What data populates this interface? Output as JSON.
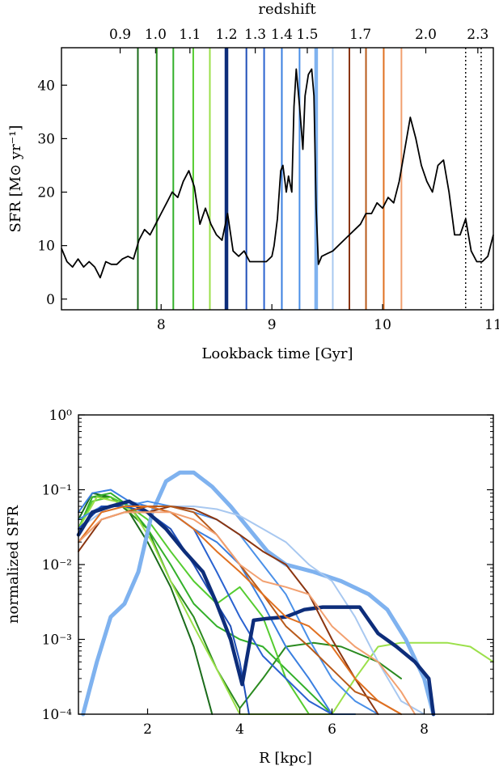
{
  "chart_data": [
    {
      "type": "line",
      "xlabel": "Lookback time [Gyr]",
      "ylabel": "SFR [M⊙ yr⁻¹]",
      "top_axis_label": "redshift",
      "xlim": [
        7.1,
        11.0
      ],
      "ylim": [
        -2,
        47
      ],
      "x_ticks": [
        8,
        9,
        10,
        11
      ],
      "y_ticks": [
        0,
        10,
        20,
        30,
        40
      ],
      "top_ticks": [
        {
          "label": "0.9",
          "t": 7.63
        },
        {
          "label": "1.0",
          "t": 7.95
        },
        {
          "label": "1.1",
          "t": 8.26
        },
        {
          "label": "1.2",
          "t": 8.59
        },
        {
          "label": "1.3",
          "t": 8.85
        },
        {
          "label": "1.4",
          "t": 9.09
        },
        {
          "label": "1.5",
          "t": 9.32
        },
        {
          "label": "1.7",
          "t": 9.8
        },
        {
          "label": "2.0",
          "t": 10.39
        },
        {
          "label": "2.3",
          "t": 10.86
        }
      ],
      "markers": [
        {
          "t": 7.79,
          "color": "#1a6b1a",
          "width": 2
        },
        {
          "t": 7.96,
          "color": "#2a8a1f",
          "width": 2
        },
        {
          "t": 8.11,
          "color": "#33b02a",
          "width": 2
        },
        {
          "t": 8.29,
          "color": "#55cc30",
          "width": 2
        },
        {
          "t": 8.44,
          "color": "#9be04a",
          "width": 2
        },
        {
          "t": 8.59,
          "color": "#0d2d7a",
          "width": 4.5
        },
        {
          "t": 8.77,
          "color": "#1f4fb8",
          "width": 2
        },
        {
          "t": 8.93,
          "color": "#2a62d0",
          "width": 2
        },
        {
          "t": 9.09,
          "color": "#3a7fe0",
          "width": 2
        },
        {
          "t": 9.25,
          "color": "#4a90e8",
          "width": 2
        },
        {
          "t": 9.4,
          "color": "#7fb2ef",
          "width": 4.5
        },
        {
          "t": 9.55,
          "color": "#a8c8f0",
          "width": 2
        },
        {
          "t": 9.7,
          "color": "#8b3510",
          "width": 2
        },
        {
          "t": 9.85,
          "color": "#b85a1a",
          "width": 2
        },
        {
          "t": 10.01,
          "color": "#e07020",
          "width": 2
        },
        {
          "t": 10.17,
          "color": "#f2a070",
          "width": 2
        },
        {
          "t": 10.75,
          "color": "#000000",
          "width": 1.4,
          "dashed": true
        },
        {
          "t": 10.89,
          "color": "#000000",
          "width": 1.4,
          "dashed": true
        }
      ],
      "series": [
        {
          "color": "#000000",
          "x": [
            7.1,
            7.15,
            7.2,
            7.25,
            7.3,
            7.35,
            7.4,
            7.45,
            7.5,
            7.55,
            7.6,
            7.65,
            7.7,
            7.75,
            7.8,
            7.85,
            7.9,
            7.95,
            8.0,
            8.05,
            8.1,
            8.15,
            8.2,
            8.25,
            8.3,
            8.35,
            8.4,
            8.45,
            8.5,
            8.55,
            8.6,
            8.65,
            8.7,
            8.75,
            8.8,
            8.85,
            8.9,
            8.95,
            9.0,
            9.02,
            9.05,
            9.08,
            9.1,
            9.13,
            9.15,
            9.18,
            9.2,
            9.22,
            9.25,
            9.28,
            9.3,
            9.33,
            9.36,
            9.38,
            9.4,
            9.42,
            9.45,
            9.5,
            9.55,
            9.6,
            9.65,
            9.7,
            9.75,
            9.8,
            9.85,
            9.9,
            9.95,
            10.0,
            10.05,
            10.1,
            10.15,
            10.2,
            10.25,
            10.3,
            10.35,
            10.4,
            10.45,
            10.5,
            10.55,
            10.6,
            10.65,
            10.7,
            10.75,
            10.8,
            10.85,
            10.9,
            10.95,
            11.0
          ],
          "y": [
            9.5,
            7,
            6,
            7.5,
            6,
            7,
            6,
            4,
            7,
            6.5,
            6.5,
            7.5,
            8,
            7.5,
            11,
            13,
            12,
            14,
            16,
            18,
            20,
            19,
            22,
            24,
            21,
            14,
            17,
            14,
            12,
            11,
            16,
            9,
            8,
            9,
            7,
            7,
            7,
            7,
            8,
            10,
            15,
            24,
            25,
            20,
            23,
            20,
            36,
            43,
            36,
            28,
            38,
            42,
            43,
            38,
            17,
            6.5,
            8,
            8.5,
            9,
            10,
            11,
            12,
            13,
            14,
            16,
            16,
            18,
            17,
            19,
            18,
            22,
            28,
            34,
            30,
            25,
            22,
            20,
            25,
            26,
            20,
            12,
            12,
            15,
            9,
            7,
            7,
            8,
            12
          ]
        }
      ]
    },
    {
      "type": "line",
      "xlabel": "R [kpc]",
      "ylabel": "normalized SFR",
      "xlim": [
        0.5,
        9.5
      ],
      "ylim": [
        0.0001,
        1
      ],
      "yscale": "log",
      "x_ticks": [
        2,
        4,
        6,
        8
      ],
      "y_ticks": [
        {
          "value": 0.0001,
          "label": "10⁻⁴"
        },
        {
          "value": 0.001,
          "label": "10⁻³"
        },
        {
          "value": 0.01,
          "label": "10⁻²"
        },
        {
          "value": 0.1,
          "label": "10⁻¹"
        },
        {
          "value": 1,
          "label": "10⁰"
        }
      ],
      "series": [
        {
          "color": "#1a6b1a",
          "width": 2,
          "x": [
            0.5,
            0.8,
            1.2,
            1.6,
            2.0,
            2.5,
            3.0,
            3.4
          ],
          "y": [
            0.04,
            0.09,
            0.08,
            0.05,
            0.02,
            0.005,
            0.0008,
            0.0001
          ]
        },
        {
          "color": "#2a8a1f",
          "width": 2,
          "x": [
            0.5,
            0.8,
            1.2,
            1.6,
            2.0,
            2.5,
            3.0,
            3.5,
            4.0,
            4.5,
            5.0,
            5.6,
            6.2,
            7.0,
            7.5
          ],
          "y": [
            0.03,
            0.08,
            0.08,
            0.05,
            0.03,
            0.006,
            0.002,
            0.0004,
            0.00012,
            0.0003,
            0.0008,
            0.0009,
            0.0008,
            0.0005,
            0.0003
          ]
        },
        {
          "color": "#33b02a",
          "width": 2,
          "x": [
            0.5,
            0.8,
            1.2,
            1.6,
            2.0,
            2.5,
            3.0,
            3.5,
            4.0,
            4.5,
            5.0,
            5.5,
            6.0,
            6.5
          ],
          "y": [
            0.03,
            0.08,
            0.09,
            0.06,
            0.03,
            0.01,
            0.003,
            0.0015,
            0.001,
            0.0008,
            0.0004,
            0.0002,
            0.0001,
            0.0001
          ]
        },
        {
          "color": "#55cc30",
          "width": 2,
          "x": [
            0.5,
            0.8,
            1.2,
            1.6,
            2.0,
            2.5,
            3.0,
            3.5,
            4.0,
            4.5,
            5.0,
            5.5
          ],
          "y": [
            0.03,
            0.07,
            0.08,
            0.06,
            0.04,
            0.015,
            0.006,
            0.003,
            0.005,
            0.002,
            0.0003,
            0.0001
          ]
        },
        {
          "color": "#9be04a",
          "width": 2,
          "x": [
            0.5,
            0.9,
            1.3,
            1.7,
            2.1,
            2.5,
            3.0,
            3.5,
            4.0,
            4.5,
            5.0,
            5.5,
            6.0,
            6.5,
            7.0,
            7.5,
            8.0,
            8.5,
            9.0,
            9.5
          ],
          "y": [
            0.03,
            0.08,
            0.07,
            0.05,
            0.02,
            0.006,
            0.0015,
            0.0004,
            0.0001,
            0.0001,
            0.0001,
            0.0001,
            0.0001,
            0.0003,
            0.0008,
            0.0009,
            0.0009,
            0.0009,
            0.0008,
            0.0005
          ]
        },
        {
          "color": "#7fb2ef",
          "width": 5,
          "x": [
            0.6,
            0.9,
            1.2,
            1.5,
            1.8,
            2.1,
            2.4,
            2.7,
            3.0,
            3.4,
            3.8,
            4.2,
            4.6,
            5.0,
            5.6,
            6.2,
            6.8,
            7.2,
            7.6,
            8.0,
            8.2
          ],
          "y": [
            0.0001,
            0.0005,
            0.002,
            0.003,
            0.008,
            0.05,
            0.13,
            0.17,
            0.17,
            0.11,
            0.06,
            0.03,
            0.015,
            0.01,
            0.008,
            0.006,
            0.004,
            0.0025,
            0.001,
            0.0003,
            0.0001
          ]
        },
        {
          "color": "#a8c8f0",
          "width": 2,
          "x": [
            0.5,
            1.0,
            1.5,
            2.0,
            2.5,
            3.0,
            3.5,
            4.0,
            4.5,
            5.0,
            5.5,
            6.0,
            6.5,
            7.0,
            7.5,
            8.0
          ],
          "y": [
            0.03,
            0.05,
            0.06,
            0.06,
            0.06,
            0.06,
            0.055,
            0.045,
            0.03,
            0.02,
            0.01,
            0.006,
            0.002,
            0.0005,
            0.00015,
            0.0001
          ]
        },
        {
          "color": "#3a7fe0",
          "width": 2,
          "x": [
            0.5,
            0.8,
            1.2,
            1.6,
            2.0,
            2.5,
            3.0,
            3.5,
            4.0,
            4.5,
            5.0,
            5.5,
            6.0,
            6.5
          ],
          "y": [
            0.05,
            0.09,
            0.1,
            0.07,
            0.06,
            0.05,
            0.03,
            0.02,
            0.01,
            0.003,
            0.0008,
            0.0003,
            0.0001,
            0.0001
          ]
        },
        {
          "color": "#4a90e8",
          "width": 2,
          "x": [
            0.5,
            1.0,
            1.5,
            2.0,
            2.5,
            3.0,
            3.5,
            4.0,
            4.5,
            5.0,
            5.5,
            6.0,
            6.5,
            7.0
          ],
          "y": [
            0.04,
            0.06,
            0.06,
            0.07,
            0.06,
            0.05,
            0.04,
            0.025,
            0.01,
            0.004,
            0.001,
            0.0003,
            0.00015,
            0.0001
          ]
        },
        {
          "color": "#2a62d0",
          "width": 2,
          "x": [
            0.5,
            1.0,
            1.5,
            2.0,
            2.5,
            3.0,
            3.5,
            4.0,
            4.5,
            5.0,
            5.5,
            6.0
          ],
          "y": [
            0.03,
            0.06,
            0.06,
            0.06,
            0.05,
            0.03,
            0.008,
            0.002,
            0.0006,
            0.0003,
            0.00015,
            0.0001
          ]
        },
        {
          "color": "#1f4fb8",
          "width": 2,
          "x": [
            0.5,
            1.0,
            1.5,
            2.0,
            2.5,
            3.0,
            3.5,
            3.8,
            4.0,
            4.2
          ],
          "y": [
            0.03,
            0.06,
            0.06,
            0.05,
            0.03,
            0.01,
            0.003,
            0.0015,
            0.0005,
            0.0001
          ]
        },
        {
          "color": "#0d2d7a",
          "width": 4.5,
          "x": [
            0.5,
            0.8,
            1.2,
            1.6,
            2.0,
            2.4,
            2.8,
            3.2,
            3.5,
            3.8,
            4.05,
            4.3,
            4.6,
            5.0,
            5.4,
            5.8,
            6.2,
            6.6,
            7.0,
            7.4,
            7.8,
            8.1,
            8.2
          ],
          "y": [
            0.025,
            0.05,
            0.06,
            0.07,
            0.05,
            0.03,
            0.015,
            0.008,
            0.003,
            0.001,
            0.00025,
            0.0018,
            0.0019,
            0.002,
            0.0025,
            0.0027,
            0.0027,
            0.0027,
            0.0012,
            0.0008,
            0.0005,
            0.0003,
            0.0001
          ]
        },
        {
          "color": "#8b3510",
          "width": 2,
          "x": [
            0.5,
            1.0,
            1.5,
            2.0,
            2.5,
            3.0,
            3.5,
            4.0,
            4.5,
            5.0,
            5.5,
            6.0,
            6.5,
            7.0
          ],
          "y": [
            0.015,
            0.04,
            0.05,
            0.05,
            0.06,
            0.055,
            0.04,
            0.025,
            0.015,
            0.01,
            0.004,
            0.001,
            0.0003,
            0.0001
          ]
        },
        {
          "color": "#b85a1a",
          "width": 2,
          "x": [
            0.5,
            1.0,
            1.5,
            2.0,
            2.5,
            3.0,
            3.5,
            4.0,
            4.5,
            5.0,
            5.5,
            6.0,
            6.5,
            7.0,
            7.5
          ],
          "y": [
            0.02,
            0.04,
            0.05,
            0.06,
            0.06,
            0.05,
            0.025,
            0.01,
            0.004,
            0.0015,
            0.0008,
            0.0004,
            0.0002,
            0.00015,
            0.0001
          ]
        },
        {
          "color": "#e07020",
          "width": 2,
          "x": [
            0.5,
            1.0,
            1.5,
            2.0,
            2.5,
            3.0,
            3.5,
            4.0,
            4.5,
            5.0,
            5.5,
            6.0,
            6.5,
            7.0,
            7.5
          ],
          "y": [
            0.02,
            0.05,
            0.06,
            0.06,
            0.05,
            0.03,
            0.015,
            0.008,
            0.004,
            0.002,
            0.0015,
            0.0008,
            0.0003,
            0.00015,
            0.0001
          ]
        },
        {
          "color": "#f2a070",
          "width": 2,
          "x": [
            0.5,
            1.0,
            1.5,
            2.0,
            2.5,
            3.0,
            3.5,
            4.0,
            4.5,
            5.0,
            5.5,
            6.0,
            6.5,
            7.0,
            7.5,
            7.8
          ],
          "y": [
            0.02,
            0.04,
            0.05,
            0.05,
            0.05,
            0.04,
            0.025,
            0.01,
            0.006,
            0.005,
            0.004,
            0.0015,
            0.0008,
            0.0005,
            0.0002,
            0.0001
          ]
        }
      ]
    }
  ]
}
